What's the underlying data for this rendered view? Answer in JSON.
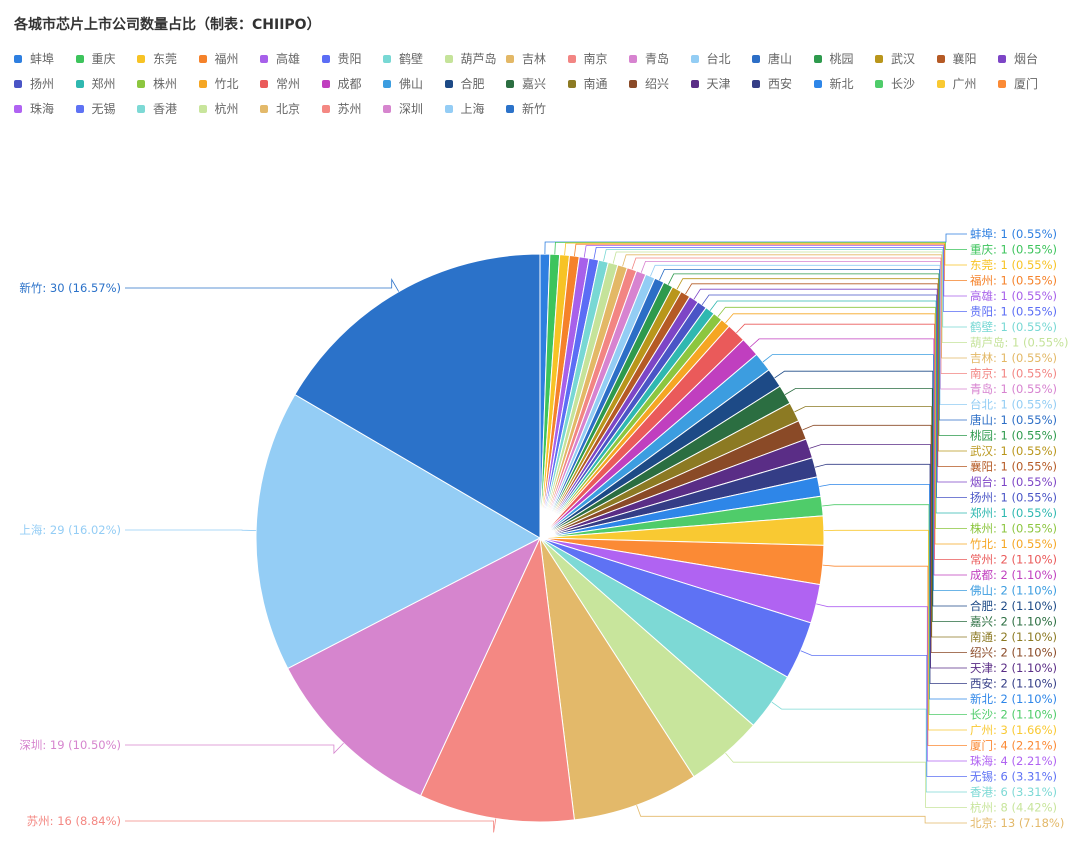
{
  "chart_data": {
    "type": "pie",
    "title": "各城市芯片上市公司数量占比（制表：CHIIPO）",
    "legend_position": "top-left",
    "slices": [
      {
        "name": "蚌埠",
        "value": 1,
        "label": "蚌埠: 1 (0.55%)",
        "color": "#2e7fe0"
      },
      {
        "name": "重庆",
        "value": 1,
        "label": "重庆: 1 (0.55%)",
        "color": "#3dc45c"
      },
      {
        "name": "东莞",
        "value": 1,
        "label": "东莞: 1 (0.55%)",
        "color": "#f7c325"
      },
      {
        "name": "福州",
        "value": 1,
        "label": "福州: 1 (0.55%)",
        "color": "#f5822a"
      },
      {
        "name": "高雄",
        "value": 1,
        "label": "高雄: 1 (0.55%)",
        "color": "#a760ea"
      },
      {
        "name": "贵阳",
        "value": 1,
        "label": "贵阳: 1 (0.55%)",
        "color": "#5b6df5"
      },
      {
        "name": "鹤壁",
        "value": 1,
        "label": "鹤壁: 1 (0.55%)",
        "color": "#78d8d4"
      },
      {
        "name": "葫芦岛",
        "value": 1,
        "label": "葫芦岛: 1 (0.55%)",
        "color": "#c5e39a"
      },
      {
        "name": "吉林",
        "value": 1,
        "label": "吉林: 1 (0.55%)",
        "color": "#e3b866"
      },
      {
        "name": "南京",
        "value": 1,
        "label": "南京: 1 (0.55%)",
        "color": "#f28583"
      },
      {
        "name": "青岛",
        "value": 1,
        "label": "青岛: 1 (0.55%)",
        "color": "#d783d0"
      },
      {
        "name": "台北",
        "value": 1,
        "label": "台北: 1 (0.55%)",
        "color": "#93cdf4"
      },
      {
        "name": "唐山",
        "value": 1,
        "label": "唐山: 1 (0.55%)",
        "color": "#2c6ec6"
      },
      {
        "name": "桃园",
        "value": 1,
        "label": "桃园: 1 (0.55%)",
        "color": "#2e9a4d"
      },
      {
        "name": "武汉",
        "value": 1,
        "label": "武汉: 1 (0.55%)",
        "color": "#b9961b"
      },
      {
        "name": "襄阳",
        "value": 1,
        "label": "襄阳: 1 (0.55%)",
        "color": "#b55a25"
      },
      {
        "name": "烟台",
        "value": 1,
        "label": "烟台: 1 (0.55%)",
        "color": "#7d45c6"
      },
      {
        "name": "扬州",
        "value": 1,
        "label": "扬州: 1 (0.55%)",
        "color": "#4a55c6"
      },
      {
        "name": "郑州",
        "value": 1,
        "label": "郑州: 1 (0.55%)",
        "color": "#2fb8b0"
      },
      {
        "name": "株州",
        "value": 1,
        "label": "株州: 1 (0.55%)",
        "color": "#8cc63f"
      },
      {
        "name": "竹北",
        "value": 1,
        "label": "竹北: 1 (0.55%)",
        "color": "#f5a623"
      },
      {
        "name": "常州",
        "value": 2,
        "label": "常州: 2 (1.10%)",
        "color": "#ea5a5a"
      },
      {
        "name": "成都",
        "value": 2,
        "label": "成都: 2 (1.10%)",
        "color": "#c03fbf"
      },
      {
        "name": "佛山",
        "value": 2,
        "label": "佛山: 2 (1.10%)",
        "color": "#3c9de0"
      },
      {
        "name": "合肥",
        "value": 2,
        "label": "合肥: 2 (1.10%)",
        "color": "#1d4a86"
      },
      {
        "name": "嘉兴",
        "value": 2,
        "label": "嘉兴: 2 (1.10%)",
        "color": "#2b6e41"
      },
      {
        "name": "南通",
        "value": 2,
        "label": "南通: 2 (1.10%)",
        "color": "#8c7a23"
      },
      {
        "name": "绍兴",
        "value": 2,
        "label": "绍兴: 2 (1.10%)",
        "color": "#8a4a27"
      },
      {
        "name": "天津",
        "value": 2,
        "label": "天津: 2 (1.10%)",
        "color": "#5a2d86"
      },
      {
        "name": "西安",
        "value": 2,
        "label": "西安: 2 (1.10%)",
        "color": "#343d86"
      },
      {
        "name": "新北",
        "value": 2,
        "label": "新北: 2 (1.10%)",
        "color": "#2e86e8"
      },
      {
        "name": "长沙",
        "value": 2,
        "label": "长沙: 2 (1.10%)",
        "color": "#4fcc6a"
      },
      {
        "name": "广州",
        "value": 3,
        "label": "广州: 3 (1.66%)",
        "color": "#f9c932"
      },
      {
        "name": "厦门",
        "value": 4,
        "label": "厦门: 4 (2.21%)",
        "color": "#fb8a35"
      },
      {
        "name": "珠海",
        "value": 4,
        "label": "珠海: 4 (2.21%)",
        "color": "#b063f2"
      },
      {
        "name": "无锡",
        "value": 6,
        "label": "无锡: 6 (3.31%)",
        "color": "#5e72f4"
      },
      {
        "name": "香港",
        "value": 6,
        "label": "香港: 6 (3.31%)",
        "color": "#7dd9d5"
      },
      {
        "name": "杭州",
        "value": 8,
        "label": "杭州: 8 (4.42%)",
        "color": "#c8e59c"
      },
      {
        "name": "北京",
        "value": 13,
        "label": "北京: 13 (7.18%)",
        "color": "#e3b96a"
      },
      {
        "name": "苏州",
        "value": 16,
        "label": "苏州: 16 (8.84%)",
        "color": "#f48883"
      },
      {
        "name": "深圳",
        "value": 19,
        "label": "深圳: 19 (10.50%)",
        "color": "#d685ce"
      },
      {
        "name": "上海",
        "value": 29,
        "label": "上海: 29 (16.02%)",
        "color": "#94cdf5"
      },
      {
        "name": "新竹",
        "value": 30,
        "label": "新竹: 30 (16.57%)",
        "color": "#2b72c9"
      }
    ]
  }
}
